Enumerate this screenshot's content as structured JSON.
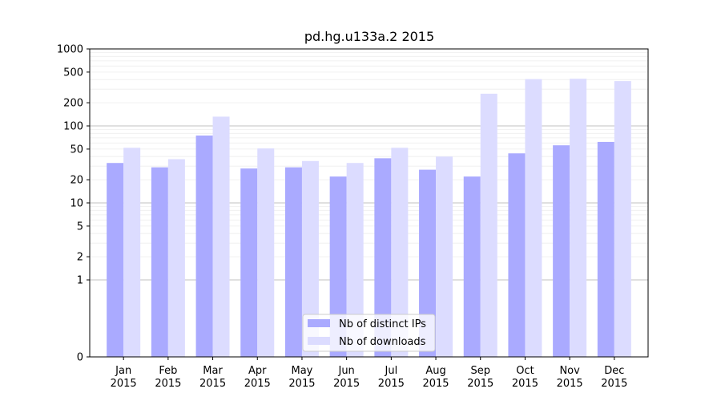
{
  "chart_data": {
    "type": "bar",
    "title": "pd.hg.u133a.2 2015",
    "xlabel": "",
    "ylabel": "",
    "scale": "symlog",
    "ylim": [
      0,
      1000
    ],
    "yticks": [
      0,
      1,
      2,
      5,
      10,
      20,
      50,
      100,
      200,
      500,
      1000
    ],
    "ytick_labels": [
      "0",
      "1",
      "2",
      "5",
      "10",
      "20",
      "50",
      "100",
      "200",
      "500",
      "1000"
    ],
    "categories": [
      [
        "Jan",
        "2015"
      ],
      [
        "Feb",
        "2015"
      ],
      [
        "Mar",
        "2015"
      ],
      [
        "Apr",
        "2015"
      ],
      [
        "May",
        "2015"
      ],
      [
        "Jun",
        "2015"
      ],
      [
        "Jul",
        "2015"
      ],
      [
        "Aug",
        "2015"
      ],
      [
        "Sep",
        "2015"
      ],
      [
        "Oct",
        "2015"
      ],
      [
        "Nov",
        "2015"
      ],
      [
        "Dec",
        "2015"
      ]
    ],
    "series": [
      {
        "name": "Nb of distinct IPs",
        "color": "#aaaaff",
        "values": [
          33,
          29,
          75,
          28,
          29,
          22,
          38,
          27,
          22,
          44,
          56,
          62
        ]
      },
      {
        "name": "Nb of downloads",
        "color": "#dcdcff",
        "values": [
          52,
          37,
          132,
          51,
          35,
          33,
          52,
          40,
          262,
          405,
          410,
          382
        ]
      }
    ],
    "legend": "bottom-center",
    "grid": true
  }
}
